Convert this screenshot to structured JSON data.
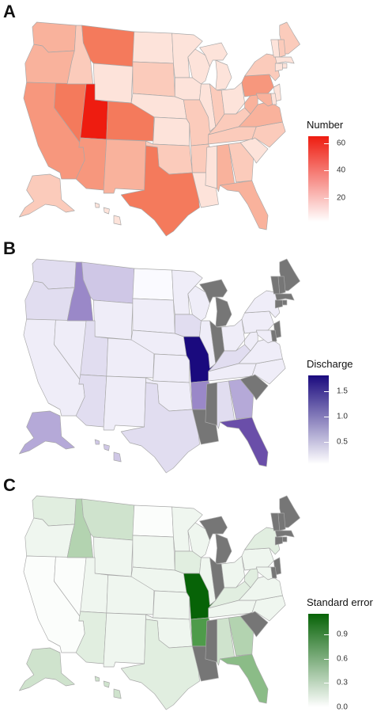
{
  "panels": [
    {
      "letter": "A",
      "legend": {
        "title": "Number",
        "ticks": [
          {
            "label": "60",
            "frac": 0.92
          },
          {
            "label": "40",
            "frac": 0.6
          },
          {
            "label": "20",
            "frac": 0.28
          }
        ],
        "color_low": "#ffffff",
        "color_high": "#ee1c10"
      },
      "palette": [
        "#fff6f3",
        "#fde3da",
        "#fbcbbb",
        "#f9b29c",
        "#f7977d",
        "#f47a5c",
        "#f05a3d",
        "#ee1c10"
      ],
      "no_data_color": "#7a7a7a",
      "states": {
        "WA": 3,
        "OR": 3,
        "CA": 4,
        "NV": 5,
        "ID": 2,
        "MT": 5,
        "WY": 1,
        "UT": 7,
        "CO": 5,
        "AZ": 4,
        "NM": 3,
        "ND": 1,
        "SD": 2,
        "NE": 1,
        "KS": 1,
        "OK": 2,
        "TX": 5,
        "MN": 1,
        "IA": 1,
        "MO": 2,
        "AR": 2,
        "LA": 1,
        "WI": 1,
        "IL": 1,
        "MI": 1,
        "IN": 2,
        "OH": 1,
        "KY": 2,
        "TN": 2,
        "MS": 1,
        "AL": 3,
        "GA": 2,
        "FL": 3,
        "SC": 1,
        "NC": 2,
        "VA": 3,
        "WV": 3,
        "PA": 4,
        "NY": 2,
        "ME": 2,
        "NH": 2,
        "VT": 1,
        "NJ": 1,
        "DE": 1,
        "MD": 3,
        "AK": 2,
        "HI": 1,
        "MA": 1,
        "CT": 1,
        "RI": 1
      }
    },
    {
      "letter": "B",
      "legend": {
        "title": "Discharge",
        "ticks": [
          {
            "label": "1.5",
            "frac": 0.82
          },
          {
            "label": "1.0",
            "frac": 0.54
          },
          {
            "label": "0.5",
            "frac": 0.25
          }
        ],
        "color_low": "#ffffff",
        "color_high": "#1a0a7e"
      },
      "palette": [
        "#fafaff",
        "#efedf8",
        "#e1ddf0",
        "#cfc7e6",
        "#b5a9d8",
        "#9a88c8",
        "#6a4ea9",
        "#1a0a7e"
      ],
      "no_data_color": "#767676",
      "states": {
        "WA": 2,
        "OR": 2,
        "CA": 1,
        "NV": 1,
        "ID": 5,
        "MT": 3,
        "WY": 1,
        "UT": 2,
        "CO": 1,
        "AZ": 2,
        "NM": 1,
        "ND": 0,
        "SD": 1,
        "NE": 1,
        "KS": 1,
        "OK": 1,
        "TX": 2,
        "MN": 1,
        "IA": 2,
        "MO": 7,
        "AR": 5,
        "LA": -1,
        "WI": 1,
        "IL": 1,
        "MI": -1,
        "IN": -1,
        "OH": 1,
        "KY": 2,
        "TN": 1,
        "MS": -1,
        "AL": 2,
        "GA": 4,
        "FL": 6,
        "SC": -1,
        "NC": 1,
        "VA": 1,
        "WV": 1,
        "PA": 1,
        "NY": 1,
        "ME": -1,
        "NH": -1,
        "VT": -1,
        "NJ": -1,
        "DE": -1,
        "MD": 1,
        "AK": 4,
        "HI": 3,
        "MA": -1,
        "CT": -1,
        "RI": -1
      }
    },
    {
      "letter": "C",
      "legend": {
        "title": "Standard error",
        "ticks": [
          {
            "label": "0.9",
            "frac": 0.78
          },
          {
            "label": "0.6",
            "frac": 0.52
          },
          {
            "label": "0.3",
            "frac": 0.26
          },
          {
            "label": "0.0",
            "frac": 0.0
          }
        ],
        "color_low": "#ffffff",
        "color_high": "#076307"
      },
      "palette": [
        "#fbfdfb",
        "#eff6ef",
        "#e1eee0",
        "#cfe3cd",
        "#b3d3b0",
        "#8bbc87",
        "#4e9b4a",
        "#076307"
      ],
      "no_data_color": "#767676",
      "states": {
        "WA": 2,
        "OR": 1,
        "CA": 0,
        "NV": 0,
        "ID": 4,
        "MT": 3,
        "WY": 1,
        "UT": 1,
        "CO": 1,
        "AZ": 2,
        "NM": 1,
        "ND": 0,
        "SD": 1,
        "NE": 1,
        "KS": 1,
        "OK": 1,
        "TX": 2,
        "MN": 1,
        "IA": 2,
        "MO": 7,
        "AR": 6,
        "LA": -1,
        "WI": 1,
        "IL": 1,
        "MI": -1,
        "IN": -1,
        "OH": 1,
        "KY": 2,
        "TN": 1,
        "MS": -1,
        "AL": 3,
        "GA": 4,
        "FL": 5,
        "SC": -1,
        "NC": 1,
        "VA": 1,
        "WV": 2,
        "PA": 1,
        "NY": 2,
        "ME": -1,
        "NH": -1,
        "VT": -1,
        "NJ": -1,
        "DE": -1,
        "MD": 1,
        "AK": 3,
        "HI": 3,
        "MA": -1,
        "CT": -1,
        "RI": -1
      }
    }
  ]
}
